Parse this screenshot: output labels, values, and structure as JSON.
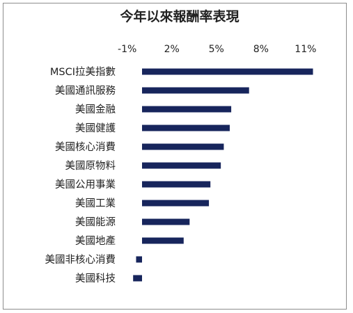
{
  "chart_data": {
    "type": "bar",
    "orientation": "horizontal",
    "title": "今年以來報酬率表現",
    "xlabel": "",
    "ylabel": "",
    "xlim": [
      -1,
      11
    ],
    "x_ticks": [
      "-1%",
      "2%",
      "5%",
      "8%",
      "11%"
    ],
    "x_tick_values": [
      -1,
      2,
      5,
      8,
      11
    ],
    "categories": [
      "MSCI拉美指數",
      "美國通訊服務",
      "美國金融",
      "美國健護",
      "美國核心消費",
      "美國原物料",
      "美國公用事業",
      "美國工業",
      "美國能源",
      "美國地產",
      "美國非核心消費",
      "美國科技"
    ],
    "values": [
      11.5,
      7.2,
      6.0,
      5.9,
      5.5,
      5.3,
      4.6,
      4.5,
      3.2,
      2.8,
      -0.4,
      -0.6
    ],
    "bar_color": "#17255c",
    "grid": false,
    "legend": "none"
  }
}
